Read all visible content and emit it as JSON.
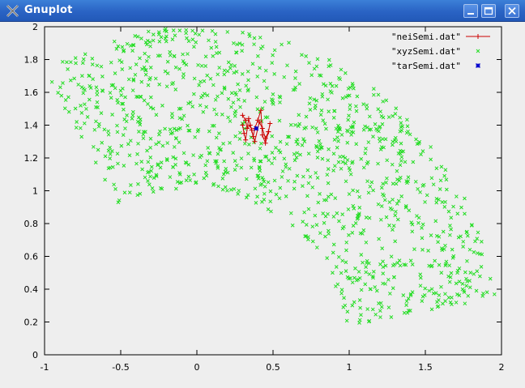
{
  "window": {
    "title": "Gnuplot"
  },
  "titlebar_buttons": [
    {
      "name": "minimize-button",
      "icon": "minimize-icon"
    },
    {
      "name": "maximize-button",
      "icon": "maximize-icon"
    },
    {
      "name": "close-button",
      "icon": "close-icon"
    }
  ],
  "chart_data": {
    "type": "scatter",
    "title": "",
    "xlabel": "",
    "ylabel": "",
    "xlim": [
      -1,
      2
    ],
    "ylim": [
      0,
      2
    ],
    "xticks": [
      "-1",
      "-0.5",
      "0",
      "0.5",
      "1",
      "1.5",
      "2"
    ],
    "yticks": [
      "0",
      "0.2",
      "0.4",
      "0.6",
      "0.8",
      "1",
      "1.2",
      "1.4",
      "1.6",
      "1.8",
      "2"
    ],
    "grid": false,
    "legend_position": "top-right",
    "series": [
      {
        "name": "\"neiSemi.dat\"",
        "style": "linespoints",
        "color": "#cc0000",
        "x": [
          0.3,
          0.32,
          0.33,
          0.35,
          0.37,
          0.38,
          0.4,
          0.42,
          0.43,
          0.45,
          0.47,
          0.48,
          0.47,
          0.45,
          0.43,
          0.41,
          0.38,
          0.36,
          0.34,
          0.32,
          0.31,
          0.3
        ],
        "y": [
          1.46,
          1.43,
          1.38,
          1.4,
          1.33,
          1.38,
          1.43,
          1.49,
          1.34,
          1.29,
          1.36,
          1.41,
          1.36,
          1.32,
          1.38,
          1.42,
          1.3,
          1.37,
          1.44,
          1.31,
          1.35,
          1.4
        ]
      },
      {
        "name": "\"xyzSemi.dat\"",
        "style": "points",
        "marker": "x",
        "color": "#22dd22",
        "description": "dense points filling an annular sector between radius ~1 and ~2 around (0,0), angles ~10° to ~120°"
      },
      {
        "name": "\"tarSemi.dat\"",
        "style": "points",
        "marker": "*",
        "color": "#0000cc",
        "x": [
          0.39
        ],
        "y": [
          1.38
        ]
      }
    ]
  }
}
